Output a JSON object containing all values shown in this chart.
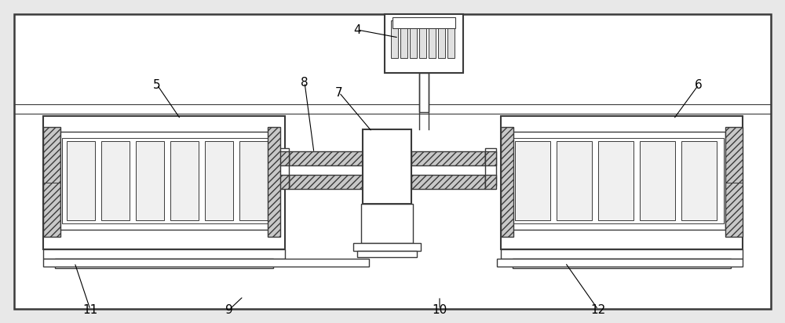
{
  "figsize": [
    10.0,
    4.12
  ],
  "dpi": 100,
  "bg_color": "#e8e8e8",
  "outer_bg": "white",
  "lc": "#3a3a3a",
  "hatch_fc": "#c8c8c8",
  "seg_fc": "#f0f0f0",
  "lw_main": 1.0,
  "lw_thick": 1.5
}
